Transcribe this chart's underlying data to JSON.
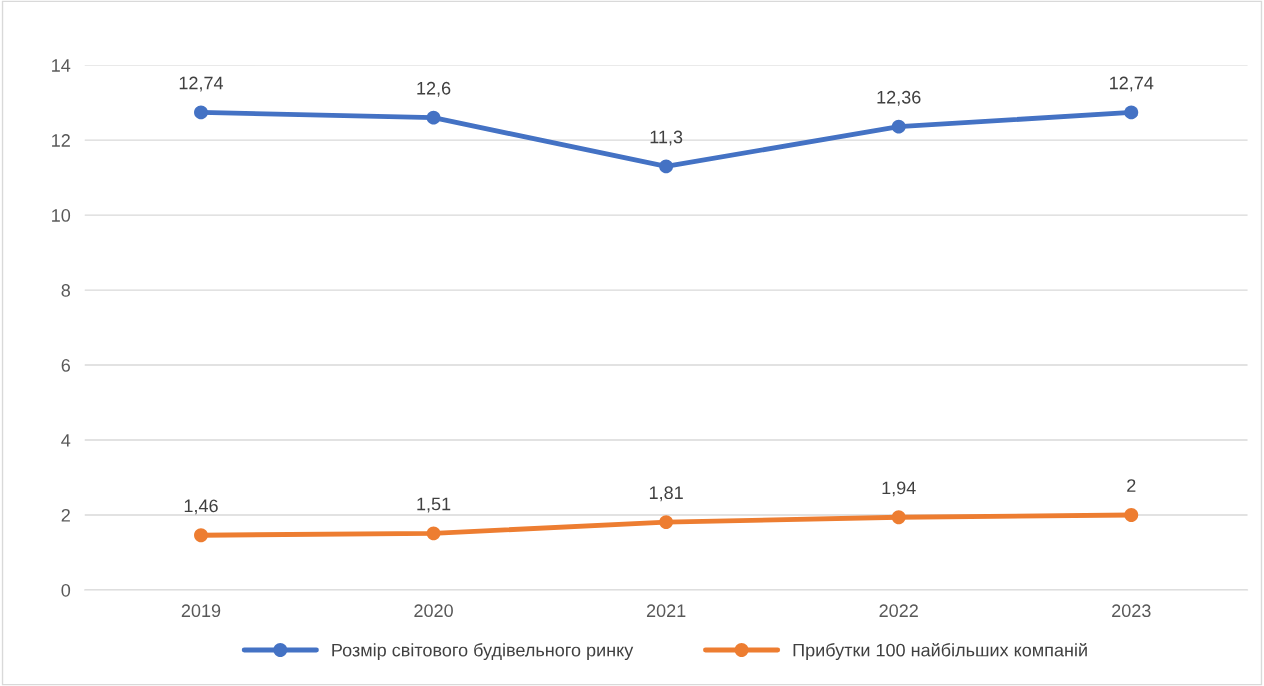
{
  "chart_data": {
    "type": "line",
    "categories": [
      "2019",
      "2020",
      "2021",
      "2022",
      "2023"
    ],
    "series": [
      {
        "name": "Розмір світового будівельного ринку",
        "color": "#4472c4",
        "values": [
          12.74,
          12.6,
          11.3,
          12.36,
          12.74
        ],
        "value_labels": [
          "12,74",
          "12,6",
          "11,3",
          "12,36",
          "12,74"
        ]
      },
      {
        "name": "Прибутки 100 найбільших компаній",
        "color": "#ed7d31",
        "values": [
          1.46,
          1.51,
          1.81,
          1.94,
          2
        ],
        "value_labels": [
          "1,46",
          "1,51",
          "1,81",
          "1,94",
          "2"
        ]
      }
    ],
    "ylim": [
      0,
      14
    ],
    "yticks": [
      0,
      2,
      4,
      6,
      8,
      10,
      12,
      14
    ],
    "grid": "y",
    "legend": "bottom",
    "marker": "circle",
    "line_style": "solid"
  }
}
